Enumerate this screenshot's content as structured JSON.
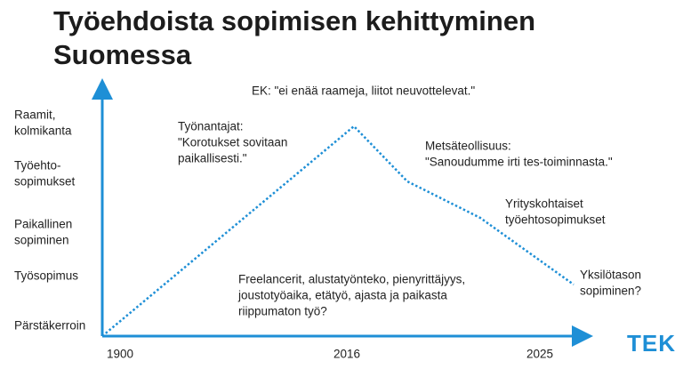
{
  "title": [
    "Työehdoista sopimisen kehittyminen",
    "Suomessa"
  ],
  "y_levels": [
    [
      "Raamit,",
      "kolmikanta"
    ],
    [
      "Työehto-",
      "sopimukset"
    ],
    [
      "Paikallinen",
      "sopiminen"
    ],
    [
      "Työsopimus"
    ],
    [
      "Pärstäkerroin"
    ]
  ],
  "x_labels": [
    "1900",
    "2016",
    "2025"
  ],
  "annotations": [
    [
      "EK: \"ei enää raameja, liitot neuvottelevat.\""
    ],
    [
      "Työnantajat:",
      "\"Korotukset sovitaan",
      "paikallisesti.\""
    ],
    [
      "Metsäteollisuus:",
      "\"Sanoudumme irti tes-toiminnasta.\""
    ],
    [
      "Yrityskohtaiset",
      "työehtosopimukset"
    ],
    [
      "Yksilötason",
      "sopiminen?"
    ],
    [
      "Freelancerit, alustatyönteko, pienyrittäjyys,",
      "joustotyöaika, etätyö, ajasta ja paikasta",
      "riippumaton työ?"
    ]
  ],
  "logo": "TEK"
}
